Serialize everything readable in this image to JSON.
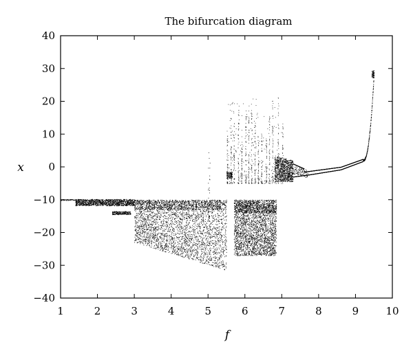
{
  "chart_data": {
    "type": "scatter",
    "title": "The bifurcation diagram",
    "xlabel": "f",
    "ylabel": "x",
    "xlim": [
      1,
      10
    ],
    "ylim": [
      -40,
      40
    ],
    "xticks": [
      "1",
      "2",
      "3",
      "4",
      "5",
      "6",
      "7",
      "8",
      "9",
      "10"
    ],
    "yticks": [
      "40",
      "30",
      "20",
      "10",
      "0",
      "−10",
      "−20",
      "−30",
      "−40"
    ],
    "grid": false,
    "legend": "none",
    "colors": {
      "points": "#000000",
      "frame": "#000000",
      "background": "#ffffff"
    },
    "regions": [
      {
        "f": [
          1.0,
          1.4
        ],
        "x": [
          -10.4,
          -9.6
        ],
        "density": "line",
        "note": "single fixed point near x = -10"
      },
      {
        "f": [
          1.4,
          3.0
        ],
        "x": [
          -11.8,
          -9.8
        ],
        "density": "dense",
        "note": "upper band"
      },
      {
        "f": [
          2.4,
          2.9
        ],
        "x": [
          -14.5,
          -13.5
        ],
        "density": "dense",
        "note": "small lower island"
      },
      {
        "f": [
          3.0,
          5.5
        ],
        "x": [
          -21.5,
          -10
        ],
        "density": "chaotic",
        "note": "lower band widening to about -21"
      },
      {
        "f": [
          5.7,
          6.85
        ],
        "x": [
          -27,
          -10
        ],
        "density": "chaotic",
        "note": "chaotic band down to about -27"
      },
      {
        "f": [
          5.5,
          7.0
        ],
        "x": [
          -5,
          22
        ],
        "density": "sparse_vertical",
        "note": "upper vertical streaks"
      },
      {
        "f": [
          5.5,
          5.65
        ],
        "x": [
          -3.5,
          -1.5
        ],
        "density": "dense",
        "note": "small cluster near x = -2"
      },
      {
        "f": [
          6.8,
          7.3
        ],
        "x": [
          -4.5,
          3.5
        ],
        "density": "dense",
        "note": "dense region before period-doubling"
      },
      {
        "f": [
          7.3,
          9.2
        ],
        "x": [
          -3,
          2
        ],
        "density": "branches",
        "note": "converging branches"
      },
      {
        "f": [
          9.2,
          9.5
        ],
        "x": [
          2,
          29
        ],
        "density": "curve",
        "note": "steep rise to about x = 29"
      }
    ],
    "annotations": []
  }
}
